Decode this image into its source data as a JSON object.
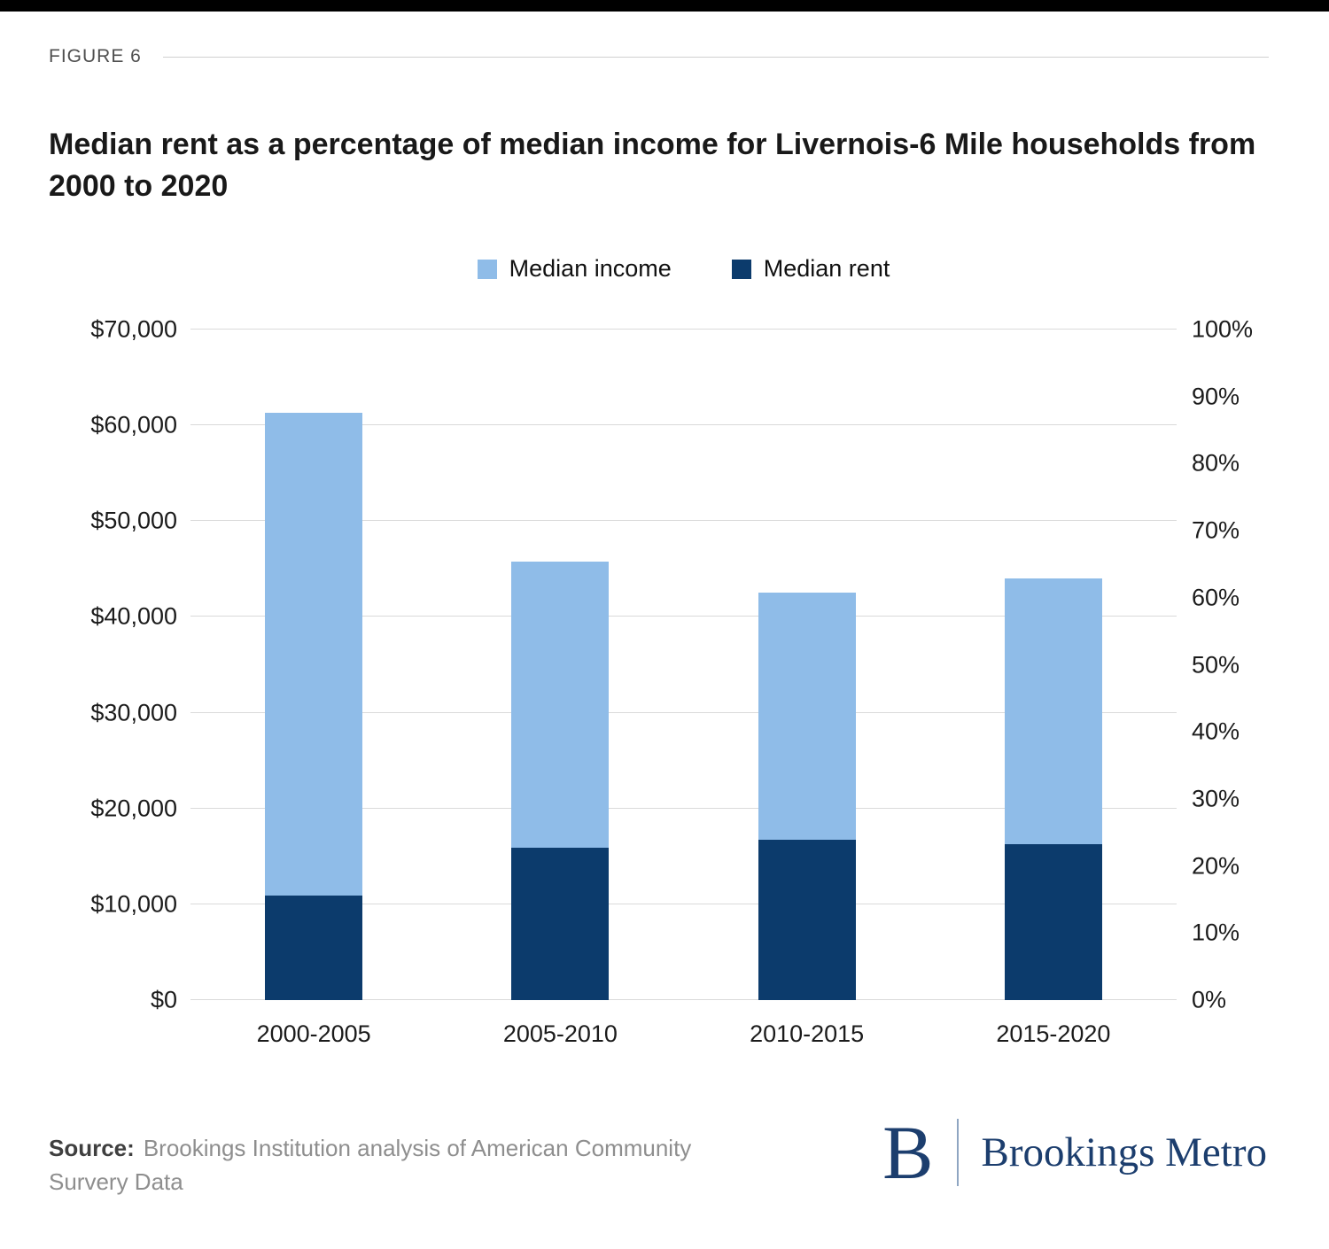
{
  "page": {
    "figure_label": "FIGURE 6",
    "title": "Median rent as a percentage of median income for Livernois-6 Mile households from 2000 to 2020",
    "source_label": "Source:",
    "source_text": "Brookings Institution analysis of American Community Survery Data",
    "logo_b": "B",
    "logo_text": "Brookings Metro"
  },
  "colors": {
    "income": "#8FBCE8",
    "rent": "#0C3B6C",
    "logo_navy": "#1C3E6E",
    "gridline": "#DADADA"
  },
  "chart_data": {
    "type": "bar",
    "stacked": true,
    "title": "Median rent as a percentage of median income for Livernois-6 Mile households from 2000 to 2020",
    "categories": [
      "2000-2005",
      "2005-2010",
      "2010-2015",
      "2015-2020"
    ],
    "series": [
      {
        "name": "Median income",
        "color_key": "income",
        "values": [
          61300,
          45800,
          42500,
          44000
        ]
      },
      {
        "name": "Median rent",
        "color_key": "rent",
        "values": [
          10900,
          15900,
          16700,
          16300
        ]
      }
    ],
    "left_axis": {
      "min": 0,
      "max": 70000,
      "step": 10000,
      "tick_labels": [
        "$0",
        "$10,000",
        "$20,000",
        "$30,000",
        "$40,000",
        "$50,000",
        "$60,000",
        "$70,000"
      ]
    },
    "right_axis": {
      "min": 0,
      "max": 100,
      "step": 10,
      "tick_labels": [
        "0%",
        "10%",
        "20%",
        "30%",
        "40%",
        "50%",
        "60%",
        "70%",
        "80%",
        "90%",
        "100%"
      ]
    },
    "legend_position": "top-center",
    "grid": true
  }
}
